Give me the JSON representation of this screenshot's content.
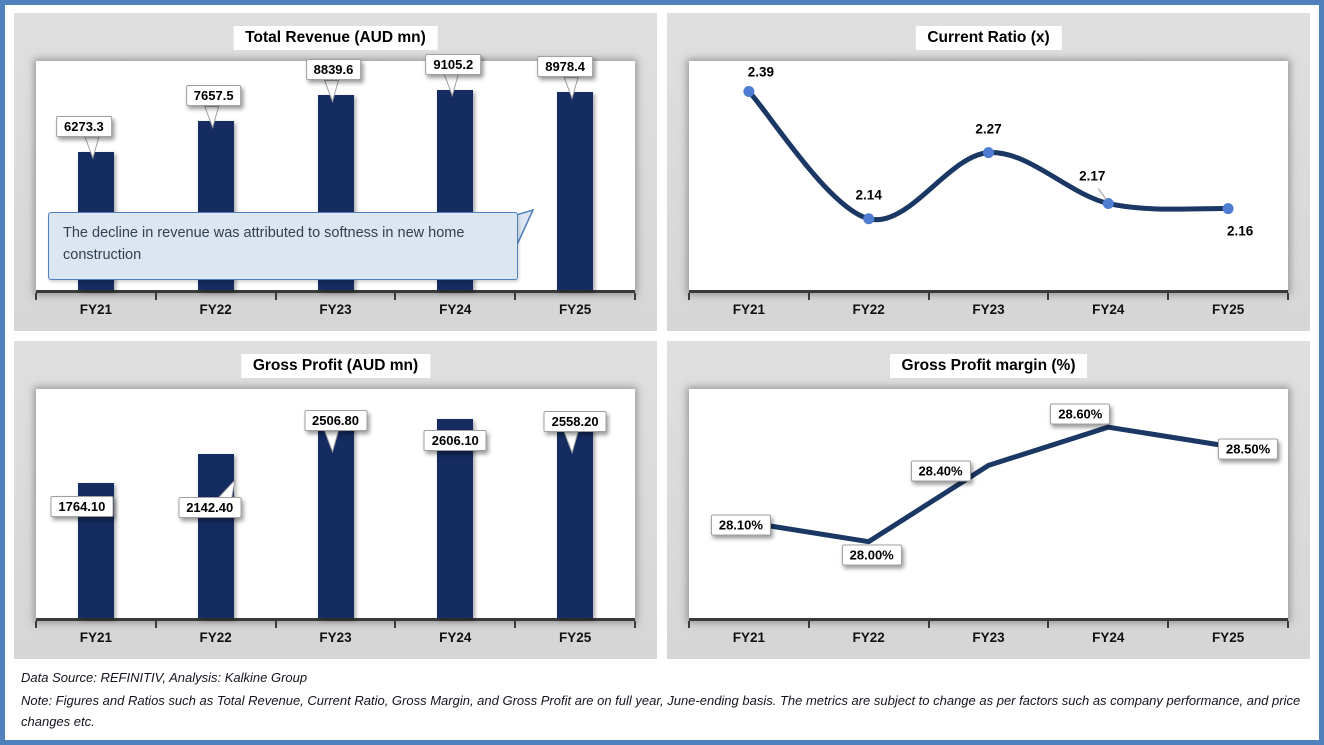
{
  "colors": {
    "frame_border": "#4F81BD",
    "panel_bg": "#D9D9D9",
    "plot_bg": "#FFFFFF",
    "bar": "#152C61",
    "line": "#1B3865",
    "marker": "#4E7DD1",
    "axis": "#3A3A3A",
    "annotation_bg": "#DCE6F2",
    "annotation_border": "#4F81BD"
  },
  "chart_data": [
    {
      "type": "bar",
      "title": "Total Revenue (AUD mn)",
      "categories": [
        "FY21",
        "FY22",
        "FY23",
        "FY24",
        "FY25"
      ],
      "values": [
        6273.3,
        7657.5,
        8839.6,
        9105.2,
        8978.4
      ],
      "value_labels": [
        "6273.3",
        "7657.5",
        "8839.6",
        "9105.2",
        "8978.4"
      ],
      "ylim": [
        0,
        10400
      ],
      "grid": false,
      "legend": "none",
      "annotation": "The decline in revenue was attributed to softness in new home construction"
    },
    {
      "type": "line",
      "title": "Current Ratio (x)",
      "categories": [
        "FY21",
        "FY22",
        "FY23",
        "FY24",
        "FY25"
      ],
      "values": [
        2.39,
        2.14,
        2.27,
        2.17,
        2.16
      ],
      "value_labels": [
        "2.39",
        "2.14",
        "2.27",
        "2.17",
        "2.16"
      ],
      "ylim": [
        2.0,
        2.45
      ],
      "smooth": true,
      "markers": true,
      "grid": false,
      "legend": "none"
    },
    {
      "type": "bar",
      "title": "Gross Profit (AUD mn)",
      "categories": [
        "FY21",
        "FY22",
        "FY23",
        "FY24",
        "FY25"
      ],
      "values": [
        1764.1,
        2142.4,
        2506.8,
        2606.1,
        2558.2
      ],
      "value_labels": [
        "1764.10",
        "2142.40",
        "2506.80",
        "2606.10",
        "2558.20"
      ],
      "ylim": [
        0,
        3000
      ],
      "grid": false,
      "legend": "none"
    },
    {
      "type": "line",
      "title": "Gross Profit margin (%)",
      "categories": [
        "FY21",
        "FY22",
        "FY23",
        "FY24",
        "FY25"
      ],
      "values": [
        28.1,
        28.0,
        28.4,
        28.6,
        28.5
      ],
      "value_labels": [
        "28.10%",
        "28.00%",
        "28.40%",
        "28.60%",
        "28.50%"
      ],
      "ylim": [
        27.6,
        28.8
      ],
      "smooth": false,
      "markers": false,
      "boxed_labels": true,
      "grid": false,
      "legend": "none"
    }
  ],
  "footer": {
    "source": "Data Source: REFINITIV, Analysis: Kalkine Group",
    "note": "Note: Figures and Ratios such as Total Revenue, Current Ratio, Gross Margin, and Gross Profit are on full year, June-ending basis. The metrics are subject to change as per factors such as company performance, and price changes etc."
  }
}
